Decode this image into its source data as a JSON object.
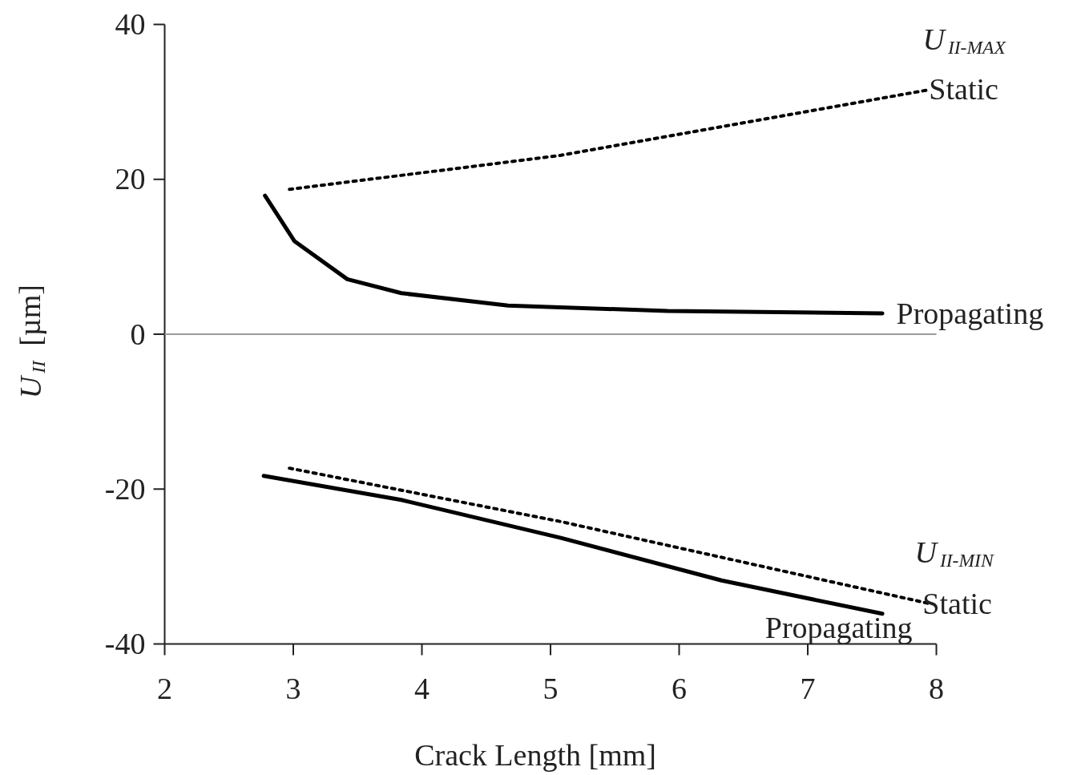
{
  "chart_data": {
    "type": "line",
    "xlabel": "Crack Length [mm]",
    "ylabel": "U$_{II}$ [µm]",
    "xlim": [
      2,
      8
    ],
    "xticks": [
      2,
      3,
      4,
      5,
      6,
      7,
      8
    ],
    "ylim": [
      -40,
      40
    ],
    "yticks": [
      -40,
      -20,
      0,
      20,
      40
    ],
    "grid": false,
    "series": [
      {
        "color": "#000000",
        "line_style": "solid",
        "x": [
          2.78,
          3.01,
          3.42,
          3.84,
          4.67,
          5.91,
          7.58
        ],
        "values": [
          17.9,
          12.0,
          7.1,
          5.3,
          3.7,
          3.0,
          2.7
        ]
      },
      {
        "color": "#000000",
        "line_style": "dotted",
        "x": [
          2.97,
          5.08,
          7.92
        ],
        "values": [
          18.7,
          23.1,
          31.5
        ]
      },
      {
        "color": "#000000",
        "line_style": "dotted",
        "x": [
          2.97,
          5.08,
          7.95
        ],
        "values": [
          -17.3,
          -24.2,
          -34.8
        ]
      },
      {
        "color": "#000000",
        "line_style": "solid",
        "x": [
          2.77,
          3.84,
          5.08,
          6.33,
          7.58
        ],
        "values": [
          -18.3,
          -21.4,
          -26.3,
          -31.8,
          -36.1
        ]
      }
    ],
    "ref_lines": [
      {
        "axis": "y",
        "value": 0,
        "color": "#9a9a9a"
      }
    ],
    "annotations": [
      "Propagating",
      "U$_{II-MAX}$",
      "Static",
      "U$_{II-MIN}$",
      "Static",
      "Propagating"
    ]
  }
}
